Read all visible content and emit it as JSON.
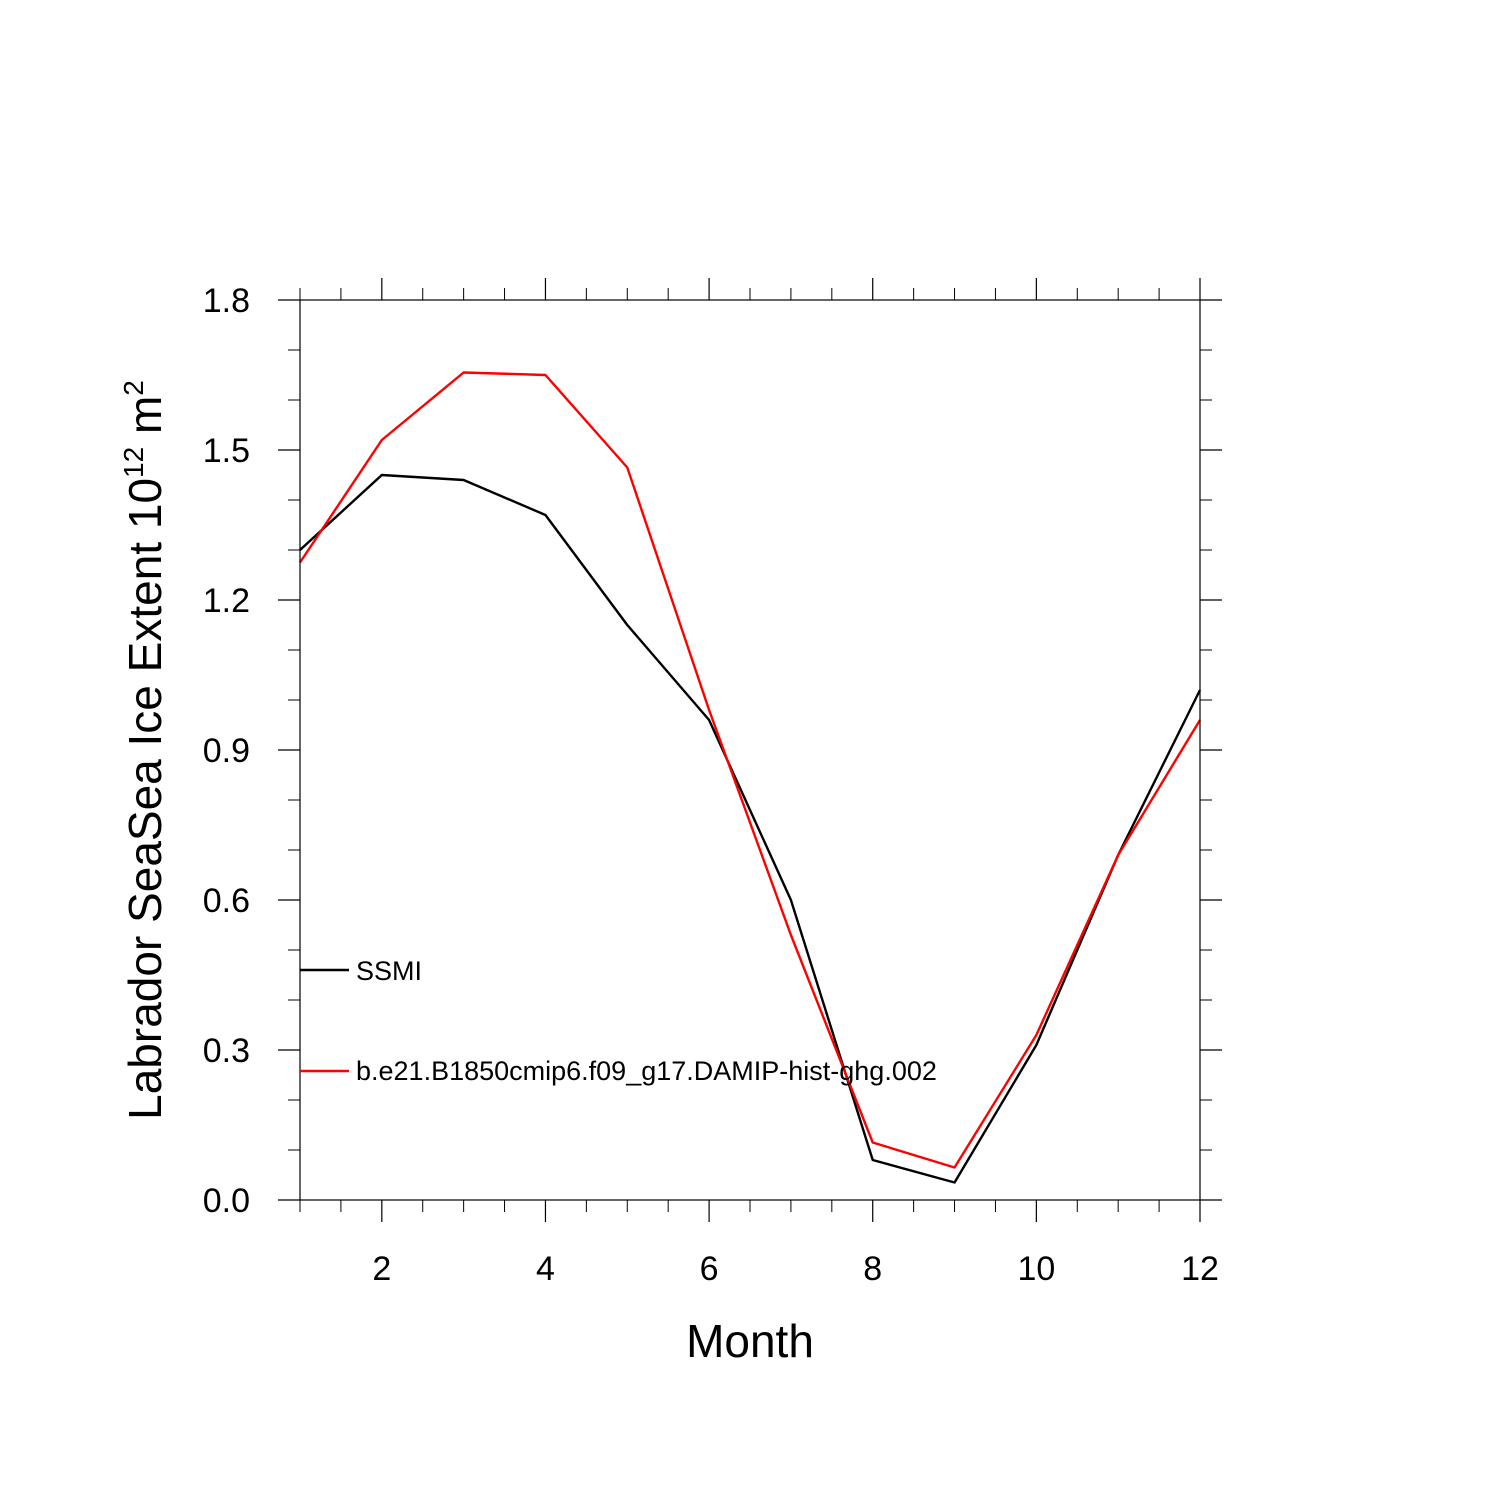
{
  "chart_data": {
    "type": "line",
    "title": "",
    "xlabel": "Month",
    "ylabel": {
      "main": "Labrador SeaSea Ice Extent 10",
      "superscript_1": "12",
      "unit": " m",
      "superscript_2": "2"
    },
    "xlim": [
      1,
      12
    ],
    "ylim": [
      0.0,
      1.8
    ],
    "xticks": [
      2,
      4,
      6,
      8,
      10,
      12
    ],
    "xtick_labels": [
      "2",
      "4",
      "6",
      "8",
      "10",
      "12"
    ],
    "xminor_step": 0.5,
    "yticks": [
      0.0,
      0.3,
      0.6,
      0.9,
      1.2,
      1.5,
      1.8
    ],
    "ytick_labels": [
      "0.0",
      "0.3",
      "0.6",
      "0.9",
      "1.2",
      "1.5",
      "1.8"
    ],
    "yminor_step": 0.1,
    "grid": false,
    "legend_position": "left-lower",
    "x": [
      1,
      2,
      3,
      4,
      5,
      6,
      7,
      8,
      9,
      10,
      11,
      12
    ],
    "series": [
      {
        "name": "SSMI",
        "color": "#000000",
        "values": [
          1.3,
          1.45,
          1.44,
          1.37,
          1.15,
          0.96,
          0.6,
          0.08,
          0.035,
          0.31,
          0.69,
          1.02
        ]
      },
      {
        "name": "b.e21.B1850cmip6.f09_g17.DAMIP-hist-ghg.002",
        "color": "#ff0000",
        "values": [
          1.275,
          1.52,
          1.655,
          1.65,
          1.465,
          0.98,
          0.53,
          0.115,
          0.065,
          0.33,
          0.69,
          0.96
        ]
      }
    ]
  }
}
